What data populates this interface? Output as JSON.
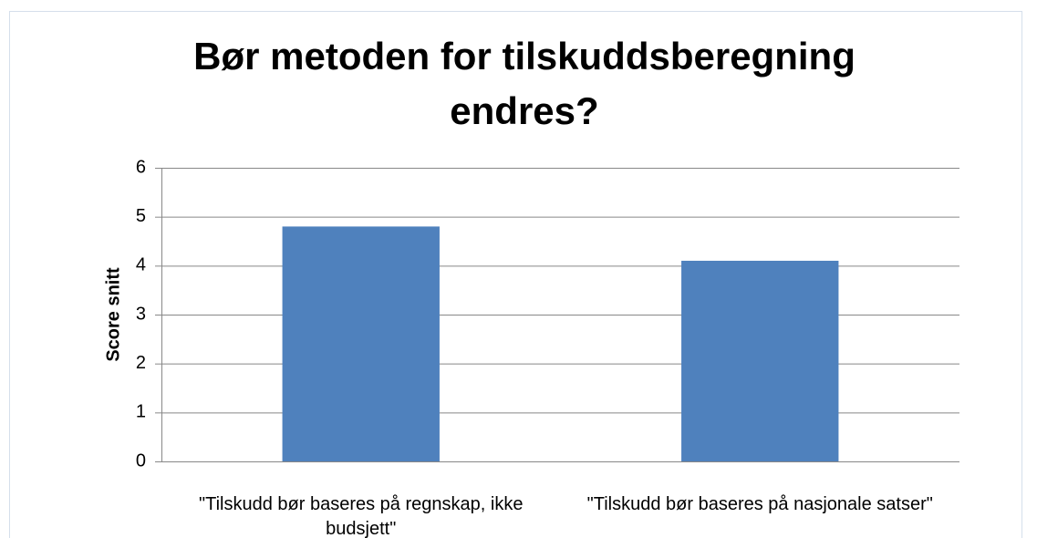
{
  "chart_data": {
    "type": "bar",
    "title": "Bør metoden for tilskuddsberegning endres?",
    "y_label": "Score snitt",
    "categories": [
      "\"Tilskudd bør baseres på regnskap, ikke budsjett\"",
      "\"Tilskudd bør baseres på nasjonale satser\""
    ],
    "values": [
      4.8,
      4.1
    ],
    "color": "#4f81bd",
    "ylim": [
      0,
      6
    ],
    "yticks": [
      0,
      1,
      2,
      3,
      4,
      5,
      6
    ],
    "grid": true
  }
}
